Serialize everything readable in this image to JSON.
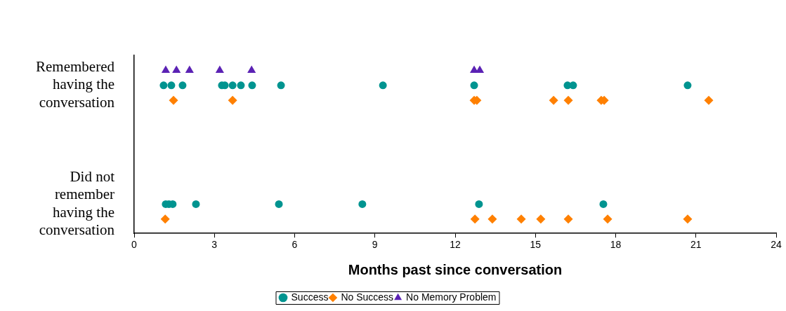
{
  "chart_data": {
    "type": "scatter",
    "orientation": "horizontal",
    "xlabel": "Months past since conversation",
    "categories": [
      "Remembered having the conversation",
      "Did not remember having the conversation"
    ],
    "xlim": [
      0,
      24
    ],
    "xticks": [
      0,
      3,
      6,
      9,
      12,
      15,
      18,
      21,
      24
    ],
    "grid": false,
    "legend": "bottom",
    "series": [
      {
        "name": "Success",
        "color": "#009490",
        "marker": "circle",
        "x": [
          "Remembered having the conversation",
          "Remembered having the conversation",
          "Remembered having the conversation",
          "Remembered having the conversation",
          "Remembered having the conversation",
          "Remembered having the conversation",
          "Remembered having the conversation",
          "Remembered having the conversation",
          "Remembered having the conversation",
          "Remembered having the conversation",
          "Remembered having the conversation",
          "Remembered having the conversation",
          "Remembered having the conversation",
          "Remembered having the conversation",
          "Did not remember having the conversation",
          "Did not remember having the conversation",
          "Did not remember having the conversation",
          "Did not remember having the conversation",
          "Did not remember having the conversation",
          "Did not remember having the conversation",
          "Did not remember having the conversation",
          "Did not remember having the conversation"
        ],
        "values": [
          1.1,
          1.39,
          1.81,
          3.28,
          3.39,
          3.68,
          3.99,
          4.41,
          5.49,
          9.3,
          12.71,
          16.2,
          16.41,
          20.69,
          1.18,
          1.3,
          1.44,
          2.31,
          5.41,
          8.53,
          12.89,
          17.54
        ]
      },
      {
        "name": "No Success",
        "color": "#ff8000",
        "marker": "diamond",
        "x": [
          "Remembered having the conversation",
          "Remembered having the conversation",
          "Remembered having the conversation",
          "Remembered having the conversation",
          "Remembered having the conversation",
          "Remembered having the conversation",
          "Remembered having the conversation",
          "Remembered having the conversation",
          "Remembered having the conversation",
          "Did not remember having the conversation",
          "Did not remember having the conversation",
          "Did not remember having the conversation",
          "Did not remember having the conversation",
          "Did not remember having the conversation",
          "Did not remember having the conversation",
          "Did not remember having the conversation",
          "Did not remember having the conversation"
        ],
        "values": [
          1.47,
          3.68,
          12.71,
          12.81,
          15.68,
          16.23,
          17.46,
          17.57,
          21.48,
          1.16,
          12.74,
          13.39,
          14.47,
          15.2,
          16.23,
          17.7,
          20.69
        ]
      },
      {
        "name": "No Memory Problem",
        "color": "#5b22b4",
        "marker": "triangle",
        "x": [
          "Remembered having the conversation",
          "Remembered having the conversation",
          "Remembered having the conversation",
          "Remembered having the conversation",
          "Remembered having the conversation",
          "Remembered having the conversation",
          "Remembered having the conversation"
        ],
        "values": [
          1.18,
          1.58,
          2.07,
          3.2,
          4.39,
          12.71,
          12.92
        ]
      }
    ]
  }
}
